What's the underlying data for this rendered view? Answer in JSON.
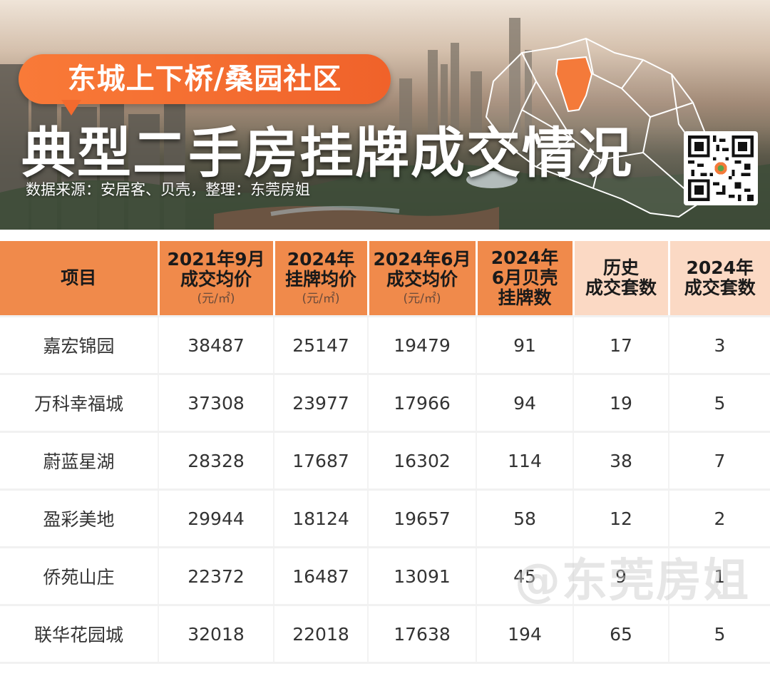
{
  "header": {
    "subtitle": "东城上下桥/桑园社区",
    "title": "典型二手房挂牌成交情况",
    "source": "数据来源：安居客、贝壳，整理：东莞房姐"
  },
  "colors": {
    "accent": "#f08a4b",
    "pill": "#f36a2e",
    "header_light": "#fbd9c4",
    "map_highlight": "#f47a3a"
  },
  "table": {
    "columns": [
      {
        "lines": [
          "项目"
        ],
        "unit": ""
      },
      {
        "lines": [
          "2021年9月",
          "成交均价"
        ],
        "unit": "(元/㎡)"
      },
      {
        "lines": [
          "2024年",
          "挂牌均价"
        ],
        "unit": "(元/㎡)"
      },
      {
        "lines": [
          "2024年6月",
          "成交均价"
        ],
        "unit": "(元/㎡)"
      },
      {
        "lines": [
          "2024年",
          "6月贝壳",
          "挂牌数"
        ],
        "unit": ""
      },
      {
        "lines": [
          "历史",
          "成交套数"
        ],
        "unit": ""
      },
      {
        "lines": [
          "2024年",
          "成交套数"
        ],
        "unit": ""
      }
    ],
    "rows": [
      [
        "嘉宏锦园",
        "38487",
        "25147",
        "19479",
        "91",
        "17",
        "3"
      ],
      [
        "万科幸福城",
        "37308",
        "23977",
        "17966",
        "94",
        "19",
        "5"
      ],
      [
        "蔚蓝星湖",
        "28328",
        "17687",
        "16302",
        "114",
        "38",
        "7"
      ],
      [
        "盈彩美地",
        "29944",
        "18124",
        "19657",
        "58",
        "12",
        "2"
      ],
      [
        "侨苑山庄",
        "22372",
        "16487",
        "13091",
        "45",
        "9",
        "1"
      ],
      [
        "联华花园城",
        "32018",
        "22018",
        "17638",
        "194",
        "65",
        "5"
      ]
    ]
  },
  "watermark": "@东莞房姐"
}
